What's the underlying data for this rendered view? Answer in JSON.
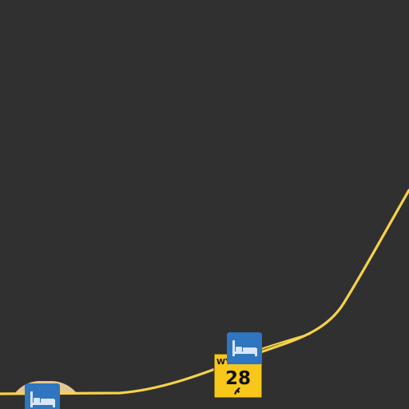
{
  "map": {
    "background_color": "#303030",
    "road_color": "#f7d24a",
    "road_casing_color": "#e6c35a",
    "ramp_fill_color": "#efcf9a"
  },
  "route_shield": {
    "state_label": "WY",
    "route_number": "28",
    "shield_color": "#f7c81a",
    "emblem_icon": "bucking-horse-icon"
  },
  "poi_markers": [
    {
      "icon": "lodging-bed-icon",
      "color": "#2f75bf"
    },
    {
      "icon": "lodging-bed-icon",
      "color": "#2f75bf"
    }
  ]
}
